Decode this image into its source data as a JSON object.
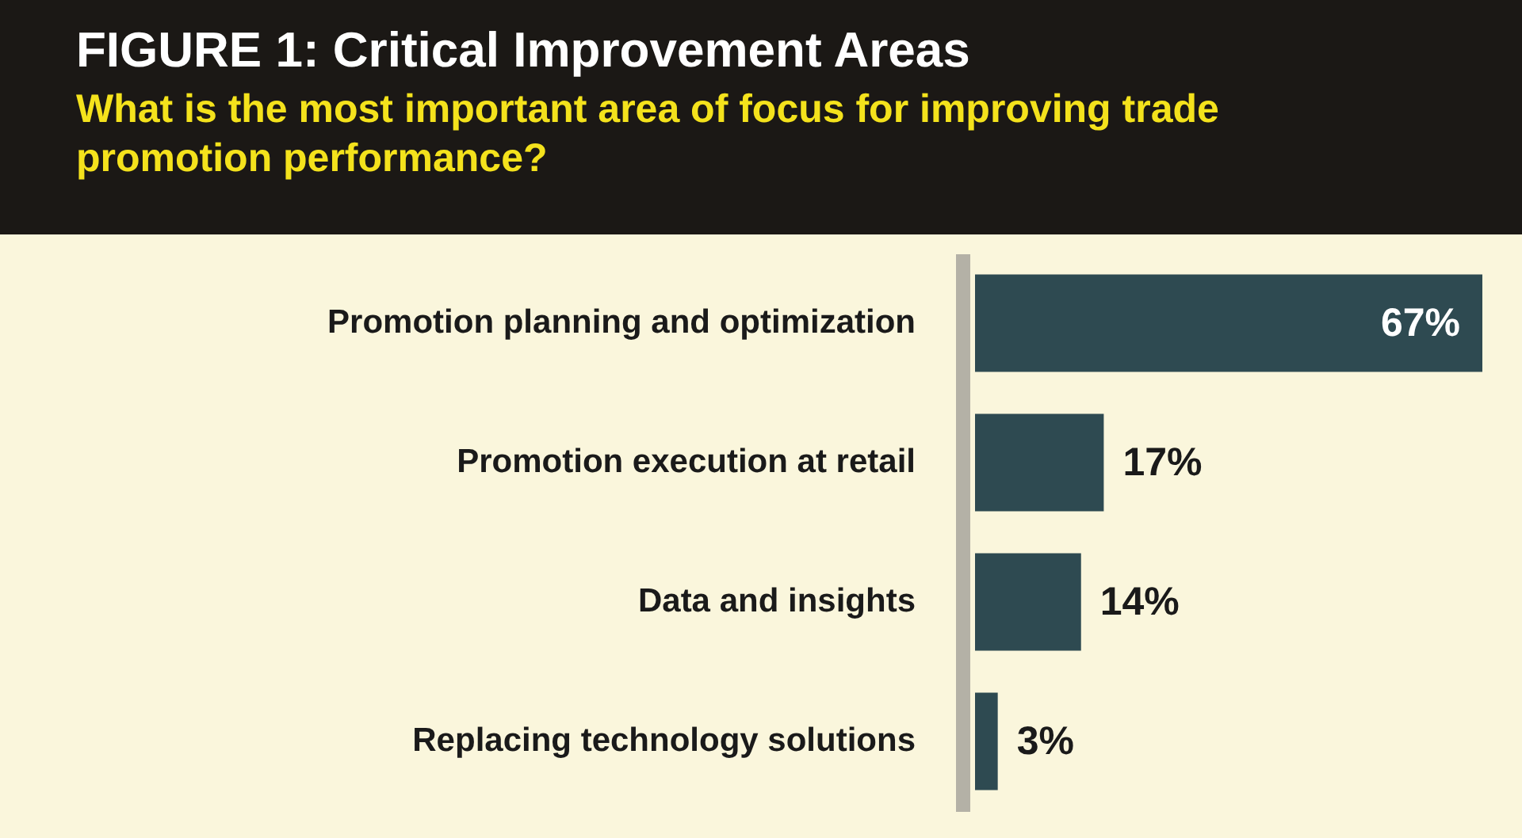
{
  "chart_data": {
    "type": "bar",
    "orientation": "horizontal",
    "title": "FIGURE 1: Critical Improvement Areas",
    "subtitle": "What is the most important area of focus for improving trade promotion performance?",
    "categories": [
      "Promotion planning and optimization",
      "Promotion execution at retail",
      "Data and insights",
      "Replacing technology solutions"
    ],
    "values": [
      67,
      17,
      14,
      3
    ],
    "value_labels": [
      "67%",
      "17%",
      "14%",
      "3%"
    ],
    "color": "#2e4a51"
  }
}
